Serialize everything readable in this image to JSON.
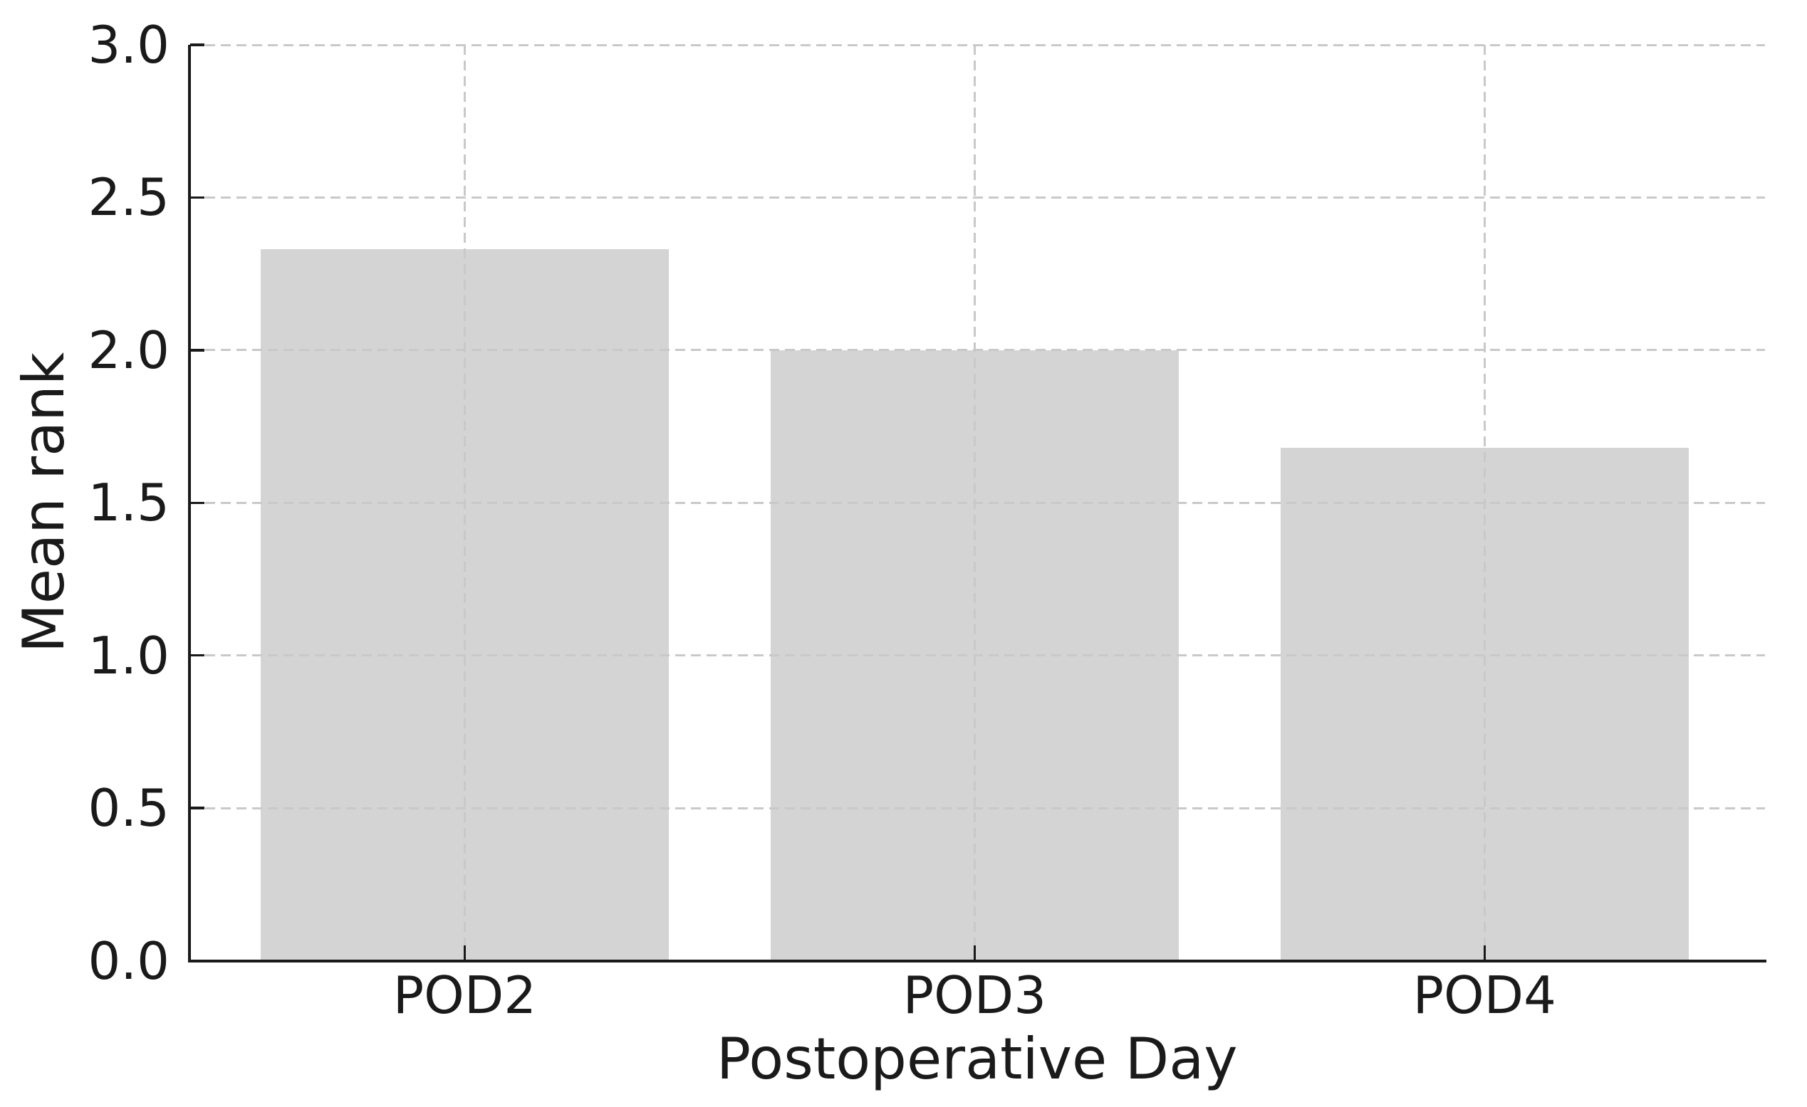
{
  "chart_data": {
    "type": "bar",
    "title": "",
    "xlabel": "Postoperative Day",
    "ylabel": "Mean rank",
    "categories": [
      "POD2",
      "POD3",
      "POD4"
    ],
    "values": [
      2.33,
      2.0,
      1.68
    ],
    "ylim": [
      0.0,
      3.0
    ],
    "yticks": [
      0.0,
      0.5,
      1.0,
      1.5,
      2.0,
      2.5,
      3.0
    ],
    "ytick_labels": [
      "0.0",
      "0.5",
      "1.0",
      "1.5",
      "2.0",
      "2.5",
      "3.0"
    ],
    "legend": "none",
    "grid": "dashed light-gray gridlines on both axes, drawn above bars",
    "bar_color": "#d4d4d4",
    "grid_color": "#c9c9c9",
    "axis_color": "#1a1a1a",
    "background_color": "#ffffff"
  }
}
